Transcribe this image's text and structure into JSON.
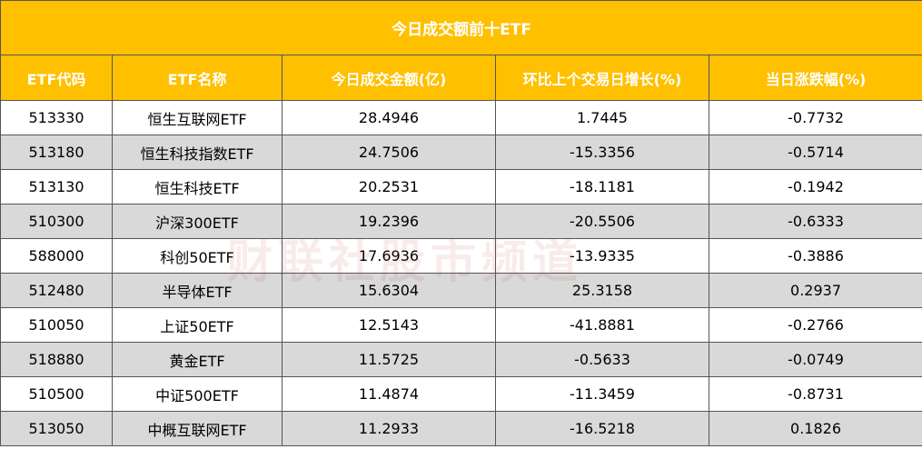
{
  "table": {
    "title": "今日成交额前十ETF",
    "header": [
      "ETF代码",
      "ETF名称",
      "今日成交金额(亿)",
      "环比上个交易日增长(%)",
      "当日涨跌幅(%)"
    ],
    "rows": [
      [
        "513330",
        "恒生互联网ETF",
        "28.4946",
        "1.7445",
        "-0.7732"
      ],
      [
        "513180",
        "恒生科技指数ETF",
        "24.7506",
        "-15.3356",
        "-0.5714"
      ],
      [
        "513130",
        "恒生科技ETF",
        "20.2531",
        "-18.1181",
        "-0.1942"
      ],
      [
        "510300",
        "沪深300ETF",
        "19.2396",
        "-20.5506",
        "-0.6333"
      ],
      [
        "588000",
        "科创50ETF",
        "17.6936",
        "-13.9335",
        "-0.3886"
      ],
      [
        "512480",
        "半导体ETF",
        "15.6304",
        "25.3158",
        "0.2937"
      ],
      [
        "510050",
        "上证50ETF",
        "12.5143",
        "-41.8881",
        "-0.2766"
      ],
      [
        "518880",
        "黄金ETF",
        "11.5725",
        "-0.5633",
        "-0.0749"
      ],
      [
        "510500",
        "中证500ETF",
        "11.4874",
        "-11.3459",
        "-0.8731"
      ],
      [
        "513050",
        "中概互联网ETF",
        "11.2933",
        "-16.5218",
        "0.1826"
      ]
    ]
  },
  "watermark": "财联社股市频道"
}
